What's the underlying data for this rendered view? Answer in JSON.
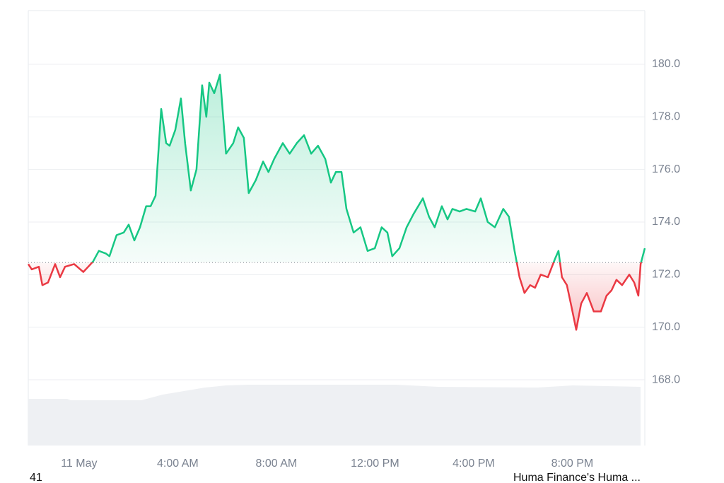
{
  "chart_data": {
    "type": "baseline",
    "baseline": 172.46,
    "up_color": "#16c784",
    "down_color": "#ea3943",
    "grid": true,
    "x": [
      -2.06,
      -1.92,
      -1.63,
      -1.49,
      -1.26,
      -0.97,
      -0.77,
      -0.57,
      -0.2,
      0.17,
      0.37,
      0.57,
      0.8,
      1.09,
      1.23,
      1.52,
      1.81,
      2.01,
      2.24,
      2.47,
      2.72,
      2.9,
      3.1,
      3.33,
      3.53,
      3.67,
      3.9,
      4.13,
      4.3,
      4.53,
      4.76,
      4.99,
      5.16,
      5.28,
      5.48,
      5.71,
      5.96,
      6.25,
      6.45,
      6.68,
      6.88,
      7.17,
      7.46,
      7.68,
      7.91,
      8.26,
      8.54,
      8.83,
      9.12,
      9.41,
      9.69,
      9.98,
      10.21,
      10.41,
      10.64,
      10.84,
      11.13,
      11.41,
      11.7,
      11.99,
      12.27,
      12.5,
      12.7,
      12.99,
      13.28,
      13.56,
      13.94,
      14.19,
      14.42,
      14.71,
      14.94,
      15.14,
      15.43,
      15.71,
      16.06,
      16.29,
      16.57,
      16.86,
      17.2,
      17.43,
      17.66,
      17.86,
      18.06,
      18.29,
      18.49,
      18.72,
      19.01,
      19.3,
      19.44,
      19.58,
      19.78,
      19.96,
      20.16,
      20.36,
      20.59,
      20.87,
      21.16,
      21.39,
      21.59,
      21.79,
      22.02,
      22.31,
      22.51,
      22.68,
      22.77,
      22.94
    ],
    "values": [
      172.4,
      172.2,
      172.3,
      171.6,
      171.7,
      172.4,
      171.9,
      172.3,
      172.4,
      172.1,
      172.3,
      172.5,
      172.9,
      172.8,
      172.7,
      173.5,
      173.6,
      173.9,
      173.3,
      173.8,
      174.6,
      174.6,
      175.0,
      178.3,
      177.0,
      176.9,
      177.5,
      178.7,
      177.0,
      175.2,
      176.0,
      179.2,
      178.0,
      179.3,
      178.9,
      179.6,
      176.6,
      177.0,
      177.6,
      177.2,
      175.1,
      175.6,
      176.3,
      175.9,
      176.4,
      177.0,
      176.6,
      177.0,
      177.3,
      176.6,
      176.9,
      176.4,
      175.5,
      175.9,
      175.9,
      174.5,
      173.6,
      173.8,
      172.9,
      173.0,
      173.8,
      173.6,
      172.7,
      173.0,
      173.8,
      174.3,
      174.9,
      174.2,
      173.8,
      174.6,
      174.1,
      174.5,
      174.4,
      174.5,
      174.4,
      174.9,
      174.0,
      173.8,
      174.5,
      174.2,
      172.9,
      171.9,
      171.3,
      171.6,
      171.5,
      172.0,
      171.9,
      172.6,
      172.9,
      171.9,
      171.6,
      170.8,
      169.9,
      170.9,
      171.3,
      170.6,
      170.6,
      171.2,
      171.4,
      171.8,
      171.6,
      172.0,
      171.7,
      171.2,
      172.4,
      173.0
    ],
    "xlim": [
      -2.06,
      22.94
    ],
    "xticks": [
      {
        "value": 0,
        "label": "11 May"
      },
      {
        "value": 4,
        "label": "4:00 AM"
      },
      {
        "value": 8,
        "label": "8:00 AM"
      },
      {
        "value": 12,
        "label": "12:00 PM"
      },
      {
        "value": 16,
        "label": "4:00 PM"
      },
      {
        "value": 20,
        "label": "8:00 PM"
      }
    ],
    "ylim": [
      165.5,
      182.04
    ],
    "yticks": [
      {
        "value": 168,
        "label": "168.0"
      },
      {
        "value": 170,
        "label": "170.0"
      },
      {
        "value": 172,
        "label": "172.0"
      },
      {
        "value": 174,
        "label": "174.0"
      },
      {
        "value": 176,
        "label": "176.0"
      },
      {
        "value": 178,
        "label": "178.0"
      },
      {
        "value": 180,
        "label": "180.0"
      }
    ]
  },
  "footer": {
    "left": "41",
    "right": "Huma Finance's Huma ..."
  }
}
